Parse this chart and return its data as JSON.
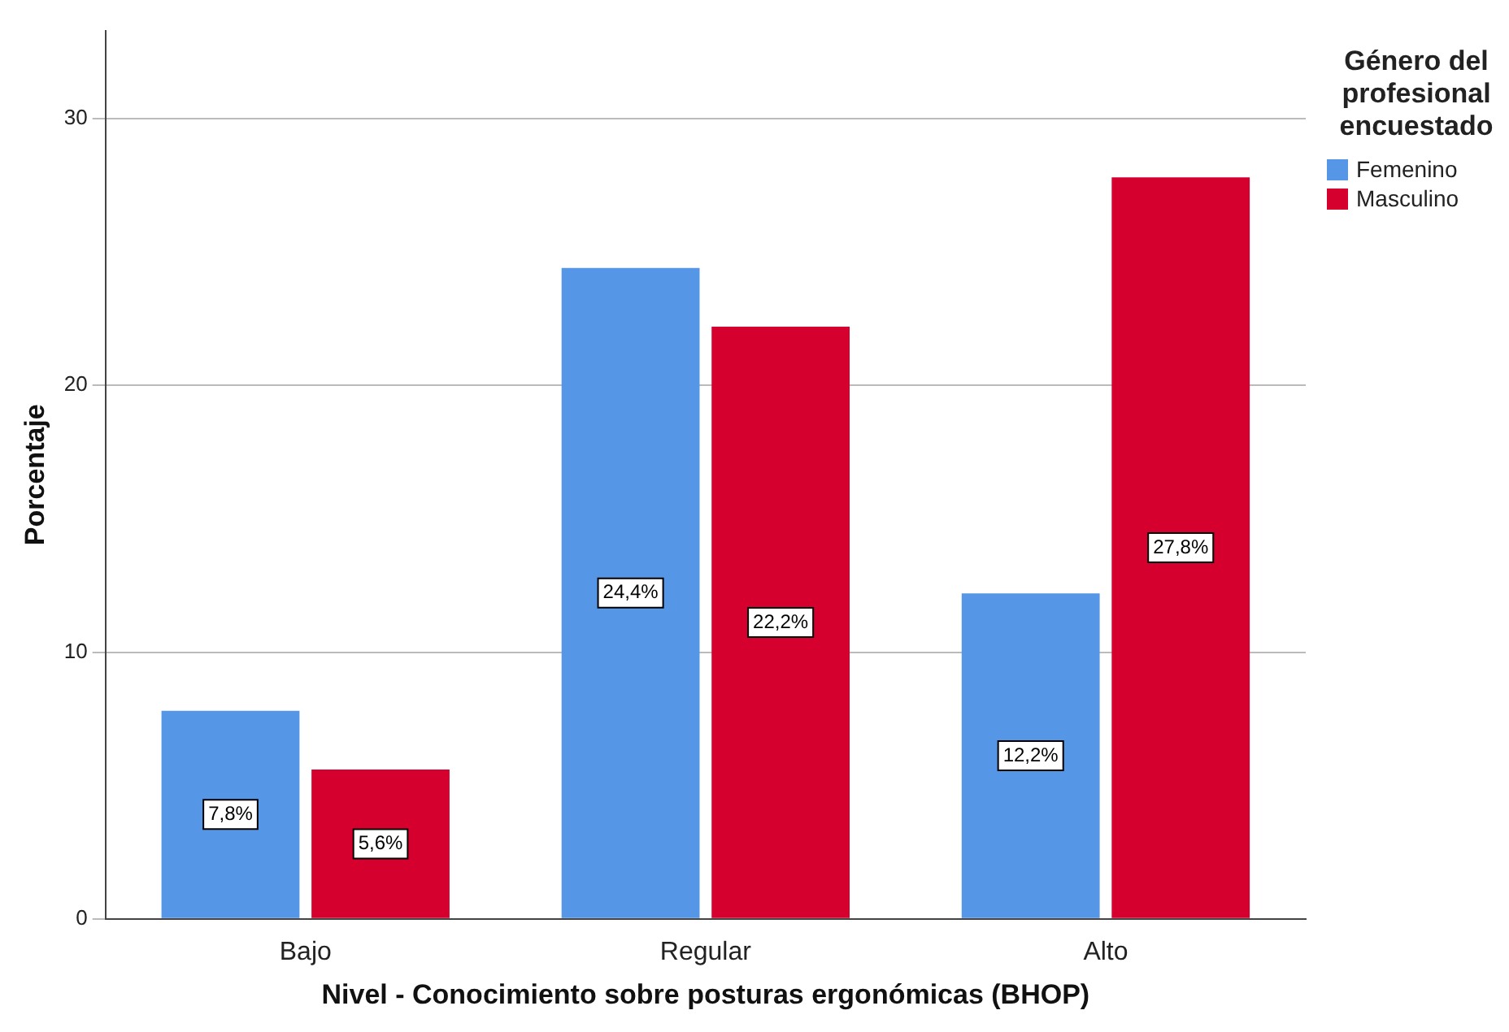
{
  "chart_data": {
    "type": "bar",
    "xlabel": "Nivel - Conocimiento sobre posturas ergonómicas (BHOP)",
    "ylabel": "Porcentaje",
    "legend_title": "Género del profesional encuestado",
    "categories": [
      "Bajo",
      "Regular",
      "Alto"
    ],
    "series": [
      {
        "name": "Femenino",
        "color": "#5596e6",
        "values": [
          7.8,
          24.4,
          12.2
        ],
        "value_labels": [
          "7,8%",
          "24,4%",
          "12,2%"
        ]
      },
      {
        "name": "Masculino",
        "color": "#d6002f",
        "values": [
          5.6,
          22.2,
          27.8
        ],
        "value_labels": [
          "5,6%",
          "22,2%",
          "27,8%"
        ]
      }
    ],
    "ylim": [
      0,
      33.3
    ],
    "yticks": [
      0,
      10,
      20,
      30
    ],
    "grid": "y",
    "legend": "top right"
  }
}
